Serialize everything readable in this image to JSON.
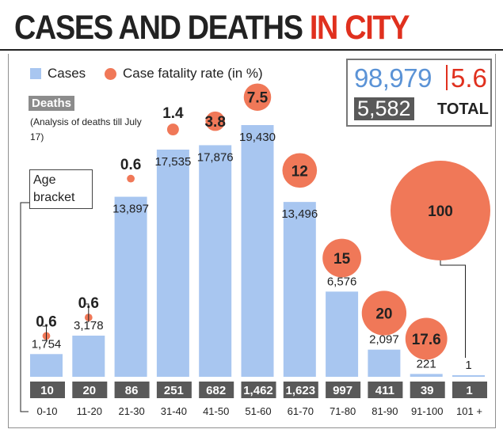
{
  "title": {
    "part1": "CASES AND DEATHS",
    "part2": "IN CITY"
  },
  "legend": {
    "cases": "Cases",
    "cfr": "Case fatality rate (in %)"
  },
  "deaths_tag": "Deaths",
  "deaths_note": "(Analysis of deaths till July 17)",
  "totals": {
    "cases": "98,979",
    "cfr": "5.6",
    "deaths": "5,582",
    "label": "TOTAL"
  },
  "age_bracket_label": "Age bracket",
  "colors": {
    "cases": "#a8c6f0",
    "cfr": "#f07858",
    "deaths_box": "#595959",
    "title_red": "#e0301e"
  },
  "chart_data": {
    "type": "bar",
    "categories": [
      "0-10",
      "11-20",
      "21-30",
      "31-40",
      "41-50",
      "51-60",
      "61-70",
      "71-80",
      "81-90",
      "91-100",
      "101+"
    ],
    "series": [
      {
        "name": "Cases",
        "values": [
          1754,
          3178,
          13897,
          17535,
          17876,
          19430,
          13496,
          6576,
          2097,
          221,
          1
        ]
      },
      {
        "name": "Case fatality rate (in %)",
        "values": [
          0.6,
          0.6,
          0.6,
          1.4,
          3.8,
          7.5,
          12,
          15,
          20,
          17.6,
          100
        ]
      }
    ],
    "deaths": [
      10,
      20,
      86,
      251,
      682,
      1462,
      1623,
      997,
      411,
      39,
      1
    ],
    "case_labels": [
      "1,754",
      "3,178",
      "13,897",
      "17,535",
      "17,876",
      "19,430",
      "13,496",
      "6,576",
      "2,097",
      "221",
      "1"
    ],
    "cfr_labels": [
      "0.6",
      "0.6",
      "0.6",
      "1.4",
      "3.8",
      "7.5",
      "12",
      "15",
      "20",
      "17.6",
      "100"
    ],
    "death_labels": [
      "10",
      "20",
      "86",
      "251",
      "682",
      "1,462",
      "1,623",
      "997",
      "411",
      "39",
      "1"
    ],
    "category_labels": [
      "0-10",
      "11-20",
      "21-30",
      "31-40",
      "41-50",
      "51-60",
      "61-70",
      "71-80",
      "81-90",
      "91-100",
      "101 +"
    ]
  }
}
